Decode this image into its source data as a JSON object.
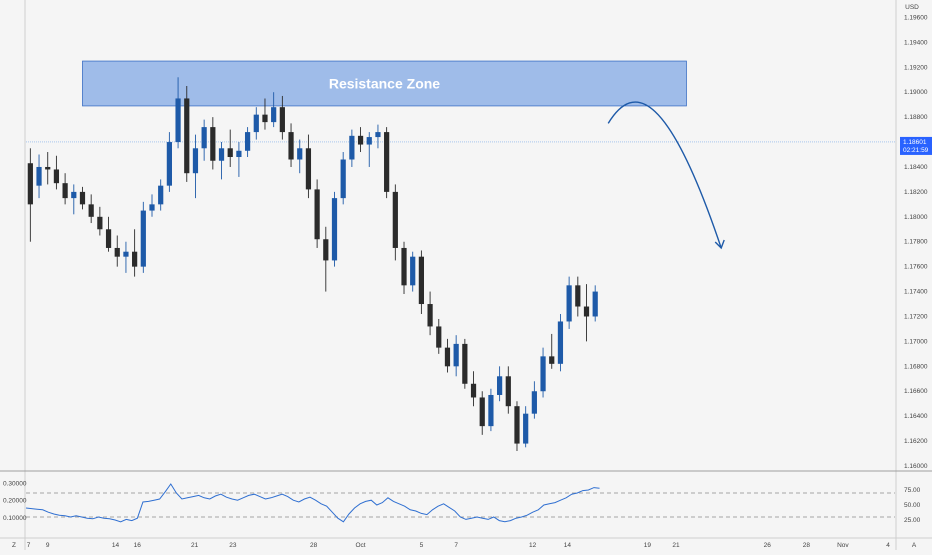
{
  "chart_data": [
    {
      "type": "candlestick",
      "panel": "price",
      "currency_label": "USD",
      "y_ticks": [
        "1.19600",
        "1.19400",
        "1.19200",
        "1.19000",
        "1.18800",
        "1.18600",
        "1.18400",
        "1.18200",
        "1.18000",
        "1.17800",
        "1.17600",
        "1.17400",
        "1.17200",
        "1.17000",
        "1.16800",
        "1.16600",
        "1.16400",
        "1.16200",
        "1.16000"
      ],
      "ylim": [
        1.16,
        1.197
      ],
      "x_labels": [
        "7",
        "9",
        "14",
        "16",
        "21",
        "23",
        "28",
        "Oct",
        "5",
        "7",
        "12",
        "14",
        "19",
        "21",
        "26",
        "28",
        "Nov",
        "4"
      ],
      "x_label_positions": [
        0.3,
        2.5,
        10.3,
        12.8,
        19.4,
        23.8,
        33.1,
        38.5,
        45.5,
        49.5,
        58.3,
        62.3,
        71.5,
        74.8,
        85.3,
        89.8,
        94,
        99.2
      ],
      "x_corner_label": "Z",
      "x_axis_end_label": "A",
      "last_price": "1.18601",
      "countdown": "02:21:59",
      "last_price_line": 1.18601,
      "resistance_zone": {
        "label": "Resistance Zone",
        "low": 1.1889,
        "high": 1.1925,
        "x_start": 6.5,
        "x_end": 76
      },
      "projection": {
        "x": [
          67,
          70,
          74,
          80
        ],
        "y": [
          1.1875,
          1.1895,
          1.188,
          1.1775
        ]
      },
      "candle_index_range": [
        0,
        100
      ],
      "candles": [
        {
          "o": 1.1843,
          "h": 1.1855,
          "l": 1.178,
          "c": 1.181
        },
        {
          "o": 1.1825,
          "h": 1.185,
          "l": 1.1815,
          "c": 1.184
        },
        {
          "o": 1.184,
          "h": 1.1852,
          "l": 1.1826,
          "c": 1.1838
        },
        {
          "o": 1.1838,
          "h": 1.1849,
          "l": 1.1822,
          "c": 1.1827
        },
        {
          "o": 1.1827,
          "h": 1.1835,
          "l": 1.181,
          "c": 1.1815
        },
        {
          "o": 1.1815,
          "h": 1.1826,
          "l": 1.1802,
          "c": 1.182
        },
        {
          "o": 1.182,
          "h": 1.1824,
          "l": 1.1806,
          "c": 1.181
        },
        {
          "o": 1.181,
          "h": 1.1818,
          "l": 1.1795,
          "c": 1.18
        },
        {
          "o": 1.18,
          "h": 1.1808,
          "l": 1.1785,
          "c": 1.179
        },
        {
          "o": 1.179,
          "h": 1.18,
          "l": 1.1772,
          "c": 1.1775
        },
        {
          "o": 1.1775,
          "h": 1.1785,
          "l": 1.176,
          "c": 1.1768
        },
        {
          "o": 1.1768,
          "h": 1.178,
          "l": 1.1755,
          "c": 1.1772
        },
        {
          "o": 1.1772,
          "h": 1.179,
          "l": 1.1752,
          "c": 1.176
        },
        {
          "o": 1.176,
          "h": 1.1812,
          "l": 1.1755,
          "c": 1.1805
        },
        {
          "o": 1.1805,
          "h": 1.1818,
          "l": 1.18,
          "c": 1.181
        },
        {
          "o": 1.181,
          "h": 1.183,
          "l": 1.1805,
          "c": 1.1825
        },
        {
          "o": 1.1825,
          "h": 1.1868,
          "l": 1.182,
          "c": 1.186
        },
        {
          "o": 1.186,
          "h": 1.1912,
          "l": 1.1855,
          "c": 1.1895
        },
        {
          "o": 1.1895,
          "h": 1.1905,
          "l": 1.1828,
          "c": 1.1835
        },
        {
          "o": 1.1835,
          "h": 1.1866,
          "l": 1.1815,
          "c": 1.1855
        },
        {
          "o": 1.1855,
          "h": 1.1878,
          "l": 1.1845,
          "c": 1.1872
        },
        {
          "o": 1.1872,
          "h": 1.188,
          "l": 1.1838,
          "c": 1.1845
        },
        {
          "o": 1.1845,
          "h": 1.186,
          "l": 1.183,
          "c": 1.1855
        },
        {
          "o": 1.1855,
          "h": 1.187,
          "l": 1.184,
          "c": 1.1848
        },
        {
          "o": 1.1848,
          "h": 1.186,
          "l": 1.1832,
          "c": 1.1853
        },
        {
          "o": 1.1853,
          "h": 1.1872,
          "l": 1.1848,
          "c": 1.1868
        },
        {
          "o": 1.1868,
          "h": 1.1888,
          "l": 1.1862,
          "c": 1.1882
        },
        {
          "o": 1.1882,
          "h": 1.1895,
          "l": 1.187,
          "c": 1.1876
        },
        {
          "o": 1.1876,
          "h": 1.19,
          "l": 1.1872,
          "c": 1.1888
        },
        {
          "o": 1.1888,
          "h": 1.1897,
          "l": 1.1862,
          "c": 1.1868
        },
        {
          "o": 1.1868,
          "h": 1.1875,
          "l": 1.184,
          "c": 1.1846
        },
        {
          "o": 1.1846,
          "h": 1.1862,
          "l": 1.1835,
          "c": 1.1855
        },
        {
          "o": 1.1855,
          "h": 1.1866,
          "l": 1.1815,
          "c": 1.1822
        },
        {
          "o": 1.1822,
          "h": 1.183,
          "l": 1.1775,
          "c": 1.1782
        },
        {
          "o": 1.1782,
          "h": 1.1792,
          "l": 1.174,
          "c": 1.1765
        },
        {
          "o": 1.1765,
          "h": 1.182,
          "l": 1.176,
          "c": 1.1815
        },
        {
          "o": 1.1815,
          "h": 1.1852,
          "l": 1.181,
          "c": 1.1846
        },
        {
          "o": 1.1846,
          "h": 1.187,
          "l": 1.184,
          "c": 1.1865
        },
        {
          "o": 1.1865,
          "h": 1.1872,
          "l": 1.1852,
          "c": 1.1858
        },
        {
          "o": 1.1858,
          "h": 1.1868,
          "l": 1.184,
          "c": 1.1864
        },
        {
          "o": 1.1864,
          "h": 1.1874,
          "l": 1.1855,
          "c": 1.1868
        },
        {
          "o": 1.1868,
          "h": 1.1872,
          "l": 1.1815,
          "c": 1.182
        },
        {
          "o": 1.182,
          "h": 1.1826,
          "l": 1.1765,
          "c": 1.1775
        },
        {
          "o": 1.1775,
          "h": 1.178,
          "l": 1.1738,
          "c": 1.1745
        },
        {
          "o": 1.1745,
          "h": 1.1772,
          "l": 1.174,
          "c": 1.1768
        },
        {
          "o": 1.1768,
          "h": 1.1773,
          "l": 1.1722,
          "c": 1.173
        },
        {
          "o": 1.173,
          "h": 1.174,
          "l": 1.1705,
          "c": 1.1712
        },
        {
          "o": 1.1712,
          "h": 1.1718,
          "l": 1.169,
          "c": 1.1695
        },
        {
          "o": 1.1695,
          "h": 1.1702,
          "l": 1.1675,
          "c": 1.168
        },
        {
          "o": 1.168,
          "h": 1.1705,
          "l": 1.1672,
          "c": 1.1698
        },
        {
          "o": 1.1698,
          "h": 1.1702,
          "l": 1.1662,
          "c": 1.1666
        },
        {
          "o": 1.1666,
          "h": 1.1676,
          "l": 1.1648,
          "c": 1.1655
        },
        {
          "o": 1.1655,
          "h": 1.166,
          "l": 1.1625,
          "c": 1.1632
        },
        {
          "o": 1.1632,
          "h": 1.1662,
          "l": 1.1628,
          "c": 1.1657
        },
        {
          "o": 1.1657,
          "h": 1.168,
          "l": 1.1652,
          "c": 1.1672
        },
        {
          "o": 1.1672,
          "h": 1.168,
          "l": 1.1642,
          "c": 1.1648
        },
        {
          "o": 1.1648,
          "h": 1.1652,
          "l": 1.1612,
          "c": 1.1618
        },
        {
          "o": 1.1618,
          "h": 1.1648,
          "l": 1.1615,
          "c": 1.1642
        },
        {
          "o": 1.1642,
          "h": 1.1668,
          "l": 1.1638,
          "c": 1.166
        },
        {
          "o": 1.166,
          "h": 1.1695,
          "l": 1.1655,
          "c": 1.1688
        },
        {
          "o": 1.1688,
          "h": 1.1706,
          "l": 1.1678,
          "c": 1.1682
        },
        {
          "o": 1.1682,
          "h": 1.1722,
          "l": 1.1676,
          "c": 1.1716
        },
        {
          "o": 1.1716,
          "h": 1.1752,
          "l": 1.171,
          "c": 1.1745
        },
        {
          "o": 1.1745,
          "h": 1.1752,
          "l": 1.172,
          "c": 1.1728
        },
        {
          "o": 1.1728,
          "h": 1.1746,
          "l": 1.17,
          "c": 1.172
        },
        {
          "o": 1.172,
          "h": 1.1745,
          "l": 1.1716,
          "c": 1.174
        }
      ]
    },
    {
      "type": "line",
      "panel": "oscillator",
      "y_ticks": [
        "0.30000",
        "0.20000",
        "0.10000"
      ],
      "right_ticks": [
        "75.00",
        "50.00",
        "25.00"
      ],
      "ylim": [
        0,
        100
      ],
      "levels": [
        70,
        30
      ],
      "x_index_range": [
        0,
        100
      ],
      "values": [
        45,
        44,
        43,
        42,
        38,
        35,
        33,
        32,
        30,
        32,
        30,
        28,
        27,
        30,
        28,
        27,
        25,
        22,
        26,
        24,
        28,
        55,
        56,
        58,
        60,
        72,
        85,
        70,
        60,
        62,
        64,
        66,
        62,
        60,
        65,
        68,
        63,
        60,
        58,
        62,
        66,
        68,
        64,
        60,
        62,
        65,
        68,
        64,
        58,
        55,
        60,
        63,
        58,
        52,
        48,
        38,
        28,
        22,
        35,
        45,
        52,
        56,
        58,
        50,
        54,
        62,
        56,
        52,
        48,
        42,
        40,
        36,
        34,
        42,
        48,
        52,
        46,
        40,
        30,
        26,
        28,
        30,
        28,
        26,
        30,
        24,
        22,
        24,
        28,
        30,
        33,
        38,
        42,
        50,
        52,
        54,
        58,
        62,
        68,
        70,
        74,
        75,
        79,
        78
      ]
    }
  ]
}
